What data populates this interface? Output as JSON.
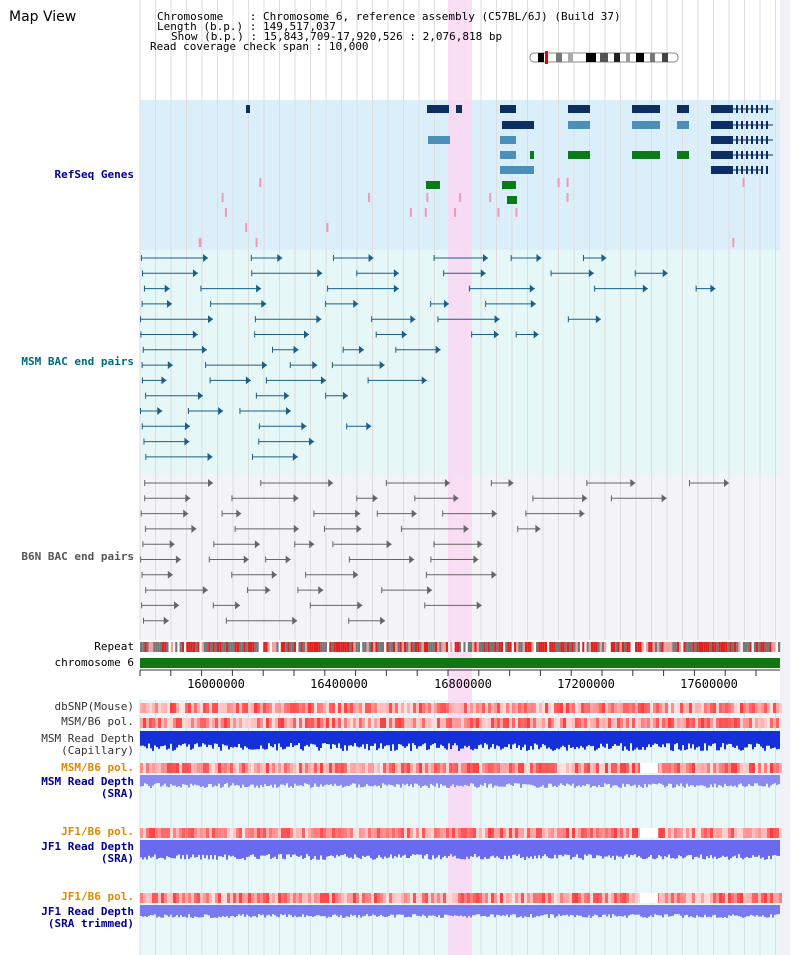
{
  "title": "Map View",
  "info": {
    "chromosome_label": "Chromosome",
    "chromosome_value": ": Chromosome 6, reference assembly (C57BL/6J) (Build 37)",
    "length_label": "Length (b.p.)",
    "length_value": ": 149,517,037",
    "show_label": "Show (b.p.)",
    "show_value": ": 15,843,709-17,920,526 : 2,076,818 bp",
    "span_label": "Read coverage check span",
    "span_value": ": 10,000"
  },
  "tracks": {
    "refseq": "RefSeq Genes",
    "msm_bac": "MSM BAC end pairs",
    "b6n_bac": "B6N BAC end pairs",
    "repeat": "Repeat",
    "chromosome": "chromosome 6",
    "dbsnp": "dbSNP(Mouse)",
    "msm_b6_pol": "MSM/B6 pol.",
    "msm_depth_cap_1": "MSM Read Depth",
    "msm_depth_cap_2": "(Capillary)",
    "msm_b6_pol_2": "MSM/B6 pol.",
    "msm_depth_sra_1": "MSM Read Depth",
    "msm_depth_sra_2": "(SRA)",
    "jf1_b6_pol": "JF1/B6 pol.",
    "jf1_depth_sra_1": "JF1 Read Depth",
    "jf1_depth_sra_2": "(SRA)",
    "jf1_b6_pol_2": "JF1/B6 pol.",
    "jf1_depth_trim_1": "JF1 Read Depth",
    "jf1_depth_trim_2": "(SRA trimmed)"
  },
  "axis_ticks": [
    "16000000",
    "16400000",
    "16800000",
    "17200000",
    "17600000"
  ],
  "colors": {
    "refseq_bg": "#dbeffa",
    "bac_bg": "#e5f7f7",
    "b6n_bg": "#f3f3f8",
    "lower_bg": "#e8f8f8",
    "highlight": "#f9d8f2",
    "gene_dark": "#0c2e63",
    "gene_mid": "#4a90b8",
    "gene_green": "#0c7a18",
    "bac_msm": "#1a5f8a",
    "bac_b6n": "#666666",
    "chromosome": "#117711",
    "label_blue": "#00008b",
    "label_teal": "#006b7b",
    "label_orange": "#e08a00"
  }
}
